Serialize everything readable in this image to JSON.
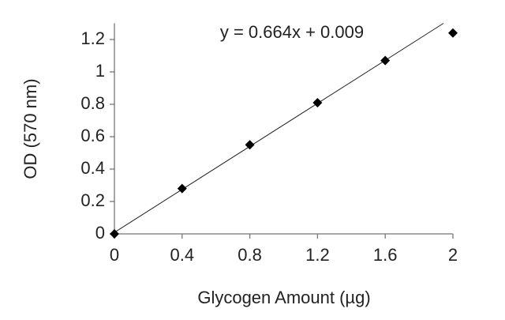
{
  "chart_data": {
    "type": "scatter",
    "annotation": "y = 0.664x + 0.009",
    "x_label": "Glycogen Amount (µg)",
    "y_label": "OD (570 nm)",
    "x": [
      0,
      0.4,
      0.8,
      1.2,
      1.6,
      2
    ],
    "values": [
      0,
      0.28,
      0.55,
      0.81,
      1.07,
      1.24
    ],
    "color": "#000000",
    "trendline": {
      "slope": 0.664,
      "intercept": 0.009
    },
    "xlim": [
      0,
      2
    ],
    "xticks": [
      0,
      0.4,
      0.8,
      1.2,
      1.6,
      2
    ],
    "ylim": [
      0,
      1.3
    ],
    "yticks": [
      0,
      0.2,
      0.4,
      0.6,
      0.8,
      1,
      1.2
    ],
    "grid": false
  }
}
